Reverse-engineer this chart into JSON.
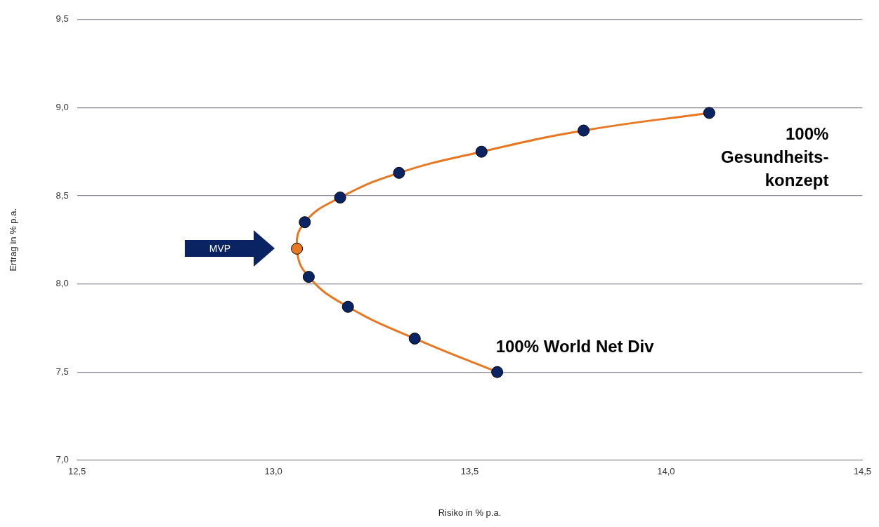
{
  "chart_data": {
    "type": "line",
    "xlabel": "Risiko in % p.a.",
    "ylabel": "Ertrag in % p.a.",
    "x": [
      14.11,
      13.79,
      13.53,
      13.32,
      13.17,
      13.08,
      13.06,
      13.09,
      13.19,
      13.36,
      13.57
    ],
    "series": [
      {
        "color": "#e87722",
        "values": [
          8.97,
          8.87,
          8.75,
          8.63,
          8.49,
          8.35,
          8.2,
          8.04,
          7.87,
          7.69,
          7.5
        ],
        "colors": [
          "#0a2463",
          "#0a2463",
          "#0a2463",
          "#0a2463",
          "#0a2463",
          "#0a2463",
          "#e87722",
          "#0a2463",
          "#0a2463",
          "#0a2463",
          "#0a2463"
        ]
      }
    ],
    "xlim": [
      12.5,
      14.5
    ],
    "xticks": [
      {
        "value": 12.5,
        "label": "12,5"
      },
      {
        "value": 13,
        "label": "13,0"
      },
      {
        "value": 13.5,
        "label": "13,5"
      },
      {
        "value": 14,
        "label": "14,0"
      },
      {
        "value": 14.5,
        "label": "14,5"
      }
    ],
    "ylim": [
      7,
      9.5
    ],
    "yticks": [
      {
        "value": 7,
        "label": "7,0"
      },
      {
        "value": 7.5,
        "label": "7,5"
      },
      {
        "value": 8,
        "label": "8,0"
      },
      {
        "value": 8.5,
        "label": "8,5"
      },
      {
        "value": 9,
        "label": "9,0"
      },
      {
        "value": 9.5,
        "label": "9,5"
      }
    ],
    "grid": "y",
    "legend": false,
    "marker": "circle",
    "line_style": "solid",
    "annotations": [
      "MVP",
      {
        "text": "100%\nGesundheits-\nkonzept",
        "x": 14.11,
        "y": 8.97
      },
      {
        "text": "100% World Net Div",
        "x": 13.57,
        "y": 7.5
      }
    ]
  }
}
